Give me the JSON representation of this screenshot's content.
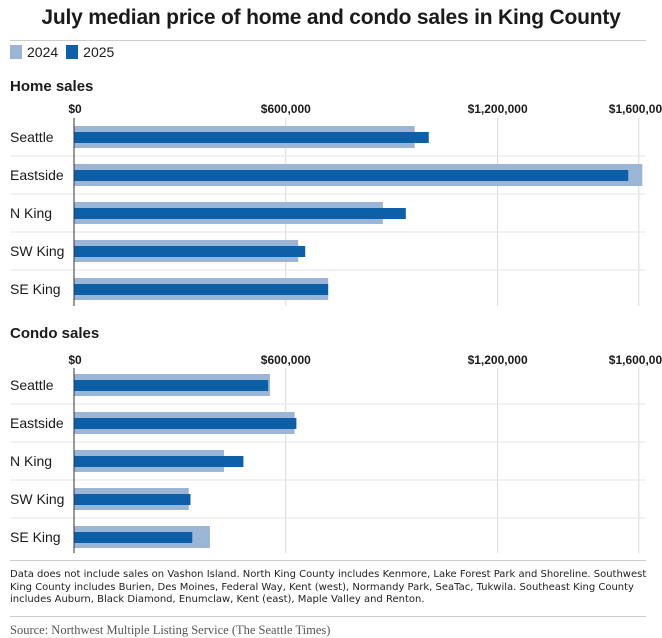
{
  "title": "July median price of home and condo sales in King County",
  "legend": [
    {
      "label": "2024",
      "color": "#9ab5d6"
    },
    {
      "label": "2025",
      "color": "#0d5fa8"
    }
  ],
  "colors": {
    "c2024": "#9ab5d6",
    "c2025": "#0d5fa8",
    "grid": "#d9d9d9"
  },
  "chart_data": [
    {
      "type": "bar",
      "orientation": "horizontal",
      "title": "Home sales",
      "categories": [
        "Seattle",
        "Eastside",
        "N King",
        "SW King",
        "SE King"
      ],
      "series": [
        {
          "name": "2024",
          "values": [
            965000,
            1610000,
            875000,
            635000,
            720000
          ]
        },
        {
          "name": "2025",
          "values": [
            1005000,
            1570000,
            940000,
            655000,
            720000
          ]
        }
      ],
      "ticks": [
        0,
        600000,
        1200000,
        1600000
      ],
      "tick_labels": [
        "$0",
        "$600,000",
        "$1,200,000",
        "$1,600,000"
      ],
      "xlim": [
        0,
        1600000
      ]
    },
    {
      "type": "bar",
      "orientation": "horizontal",
      "title": "Condo sales",
      "categories": [
        "Seattle",
        "Eastside",
        "N King",
        "SW King",
        "SE King"
      ],
      "series": [
        {
          "name": "2024",
          "values": [
            555000,
            625000,
            425000,
            325000,
            385000
          ]
        },
        {
          "name": "2025",
          "values": [
            550000,
            630000,
            480000,
            330000,
            335000
          ]
        }
      ],
      "ticks": [
        0,
        600000,
        1200000,
        1600000
      ],
      "tick_labels": [
        "$0",
        "$600,000",
        "$1,200,000",
        "$1,600,000"
      ],
      "xlim": [
        0,
        1600000
      ]
    }
  ],
  "footnote": "Data does not include sales on Vashon Island. North King County includes Kenmore, Lake Forest Park and Shoreline. Southwest King County includes Burien, Des Moines, Federal Way, Kent (west), Normandy Park, SeaTac, Tukwila. Southeast King County includes Auburn, Black Diamond, Enumclaw, Kent (east), Maple Valley and Renton.",
  "source": "Source: Northwest Multiple Listing Service (The Seattle Times)"
}
